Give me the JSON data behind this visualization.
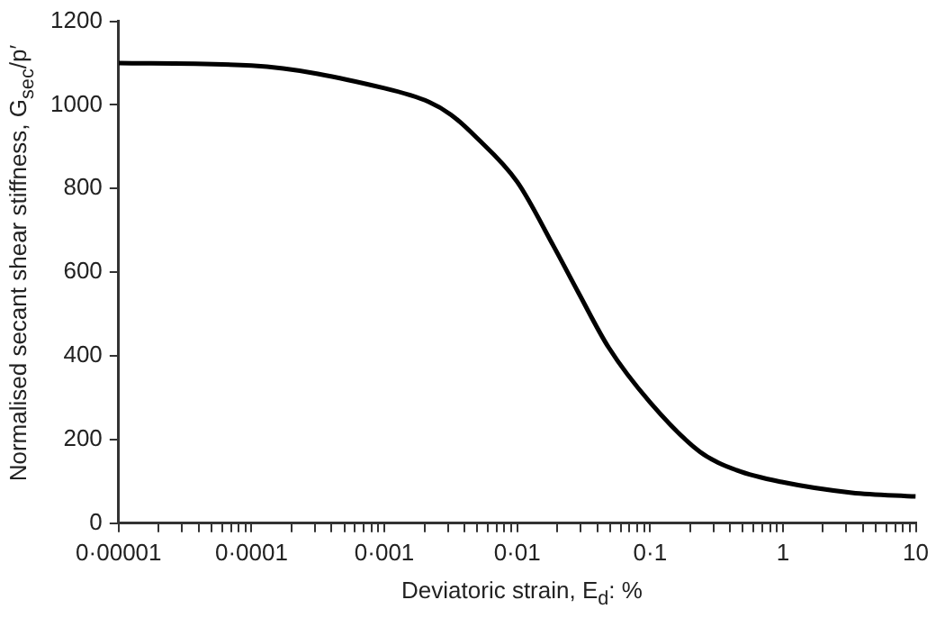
{
  "chart_data": {
    "type": "line",
    "xlabel": "Deviatoric strain, E$_{d}$: %",
    "ylabel": "Normalised secant shear stiffness, G$_{sec}$/p′",
    "log": "x",
    "marker": "none",
    "line_style": "solid",
    "xlim": [
      1e-05,
      10
    ],
    "ylim": [
      0,
      1200
    ],
    "xticks": [
      {
        "value": 1e-05,
        "label": "0·00001"
      },
      {
        "value": 2e-05,
        "label": null
      },
      {
        "value": 3e-05,
        "label": null
      },
      {
        "value": 4e-05,
        "label": null
      },
      {
        "value": 5e-05,
        "label": null
      },
      {
        "value": 6e-05,
        "label": null
      },
      {
        "value": 7e-05,
        "label": null
      },
      {
        "value": 8e-05,
        "label": null
      },
      {
        "value": 9e-05,
        "label": null
      },
      {
        "value": 0.0001,
        "label": "0·0001"
      },
      {
        "value": 0.0002,
        "label": null
      },
      {
        "value": 0.0003,
        "label": null
      },
      {
        "value": 0.0004,
        "label": null
      },
      {
        "value": 0.0005,
        "label": null
      },
      {
        "value": 0.0006,
        "label": null
      },
      {
        "value": 0.0007,
        "label": null
      },
      {
        "value": 0.0008,
        "label": null
      },
      {
        "value": 0.0009,
        "label": null
      },
      {
        "value": 0.001,
        "label": "0·001"
      },
      {
        "value": 0.002,
        "label": null
      },
      {
        "value": 0.003,
        "label": null
      },
      {
        "value": 0.004,
        "label": null
      },
      {
        "value": 0.005,
        "label": null
      },
      {
        "value": 0.006,
        "label": null
      },
      {
        "value": 0.007,
        "label": null
      },
      {
        "value": 0.008,
        "label": null
      },
      {
        "value": 0.009,
        "label": null
      },
      {
        "value": 0.01,
        "label": "0·01"
      },
      {
        "value": 0.02,
        "label": null
      },
      {
        "value": 0.03,
        "label": null
      },
      {
        "value": 0.04,
        "label": null
      },
      {
        "value": 0.05,
        "label": null
      },
      {
        "value": 0.06,
        "label": null
      },
      {
        "value": 0.07,
        "label": null
      },
      {
        "value": 0.08,
        "label": null
      },
      {
        "value": 0.09,
        "label": null
      },
      {
        "value": 0.1,
        "label": "0·1"
      },
      {
        "value": 0.2,
        "label": null
      },
      {
        "value": 0.3,
        "label": null
      },
      {
        "value": 0.4,
        "label": null
      },
      {
        "value": 0.5,
        "label": null
      },
      {
        "value": 0.6,
        "label": null
      },
      {
        "value": 0.7,
        "label": null
      },
      {
        "value": 0.8,
        "label": null
      },
      {
        "value": 0.9,
        "label": null
      },
      1,
      {
        "value": 2,
        "label": null
      },
      {
        "value": 3,
        "label": null
      },
      {
        "value": 4,
        "label": null
      },
      {
        "value": 5,
        "label": null
      },
      {
        "value": 6,
        "label": null
      },
      {
        "value": 7,
        "label": null
      },
      {
        "value": 8,
        "label": null
      },
      {
        "value": 9,
        "label": null
      },
      10
    ],
    "yticks": [
      0,
      200,
      400,
      600,
      800,
      1000,
      1200
    ],
    "x": [
      1e-05,
      0.0001,
      0.001,
      0.00217,
      0.00316,
      0.00479,
      0.01,
      0.0188,
      0.0288,
      0.0488,
      0.1,
      0.237,
      0.447,
      1,
      3.3,
      10
    ],
    "series": [
      {
        "color": "#000000",
        "values": [
          1100,
          1094,
          1040,
          1007,
          977,
          926,
          816,
          662,
          552,
          420,
          289,
          171,
          127,
          98,
          73,
          64
        ]
      }
    ]
  }
}
